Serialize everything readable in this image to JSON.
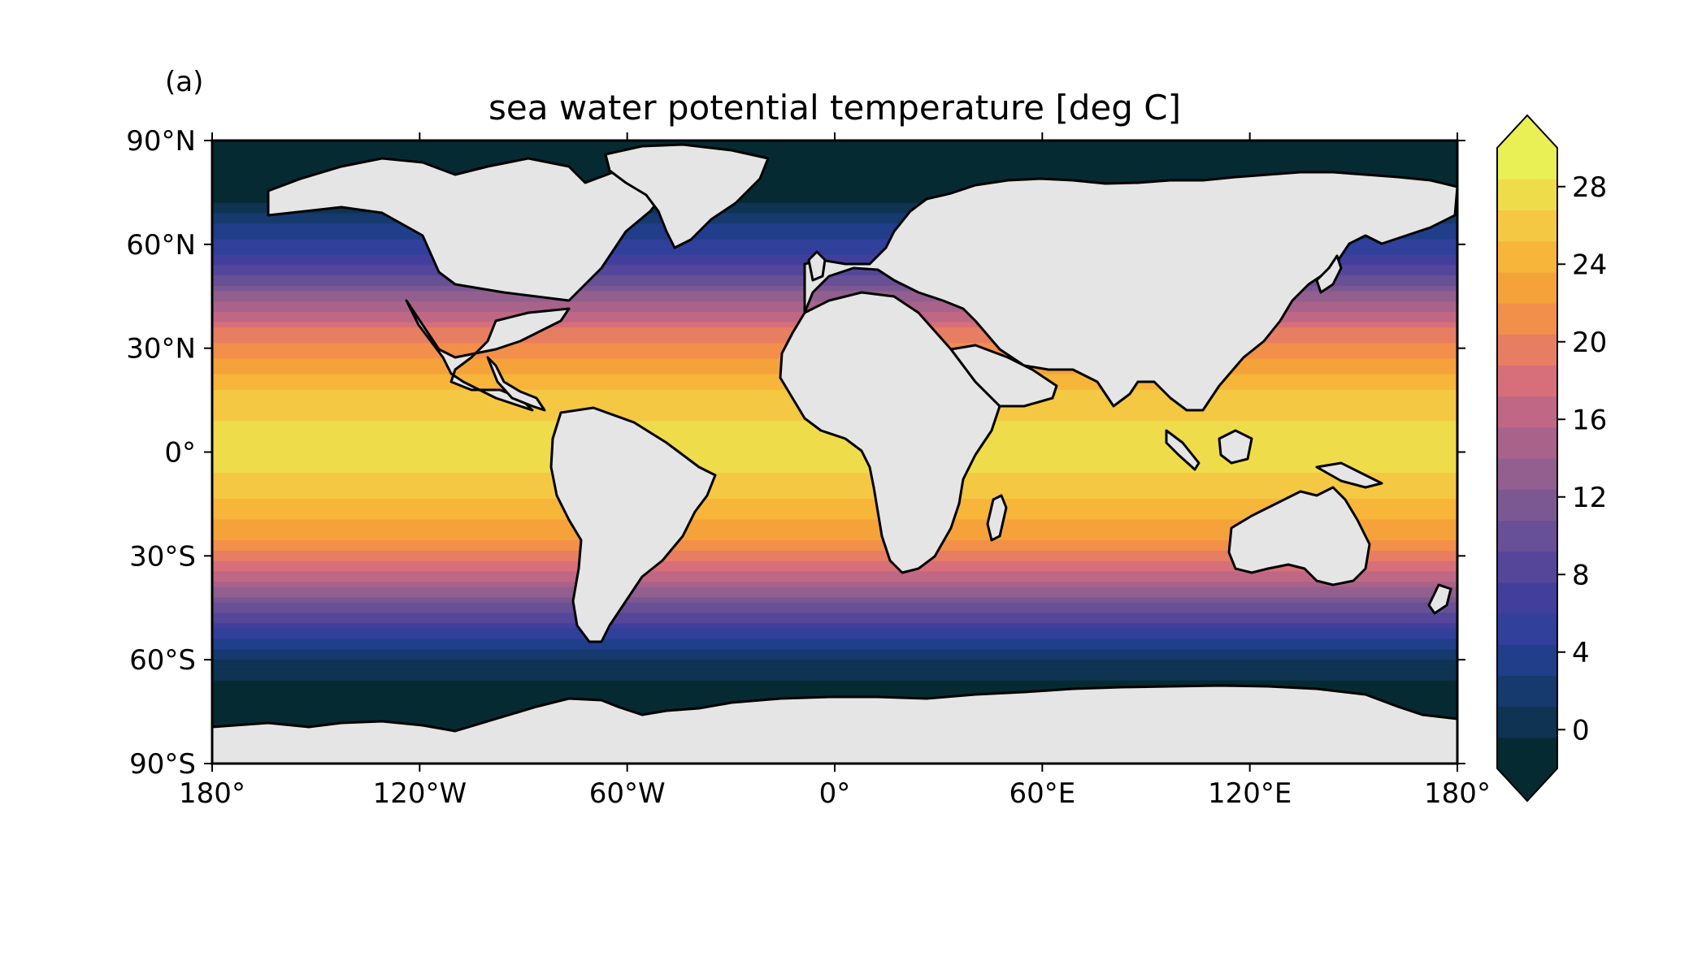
{
  "panel_label": "(a)",
  "title": "sea water potential temperature [deg C]",
  "chart_data": {
    "type": "heatmap",
    "title": "sea water potential temperature [deg C]",
    "xlim": [
      -180,
      180
    ],
    "ylim": [
      -90,
      90
    ],
    "x_ticks": [
      {
        "value": -180,
        "label": "180°"
      },
      {
        "value": -120,
        "label": "120°W"
      },
      {
        "value": -60,
        "label": "60°W"
      },
      {
        "value": 0,
        "label": "0°"
      },
      {
        "value": 60,
        "label": "60°E"
      },
      {
        "value": 120,
        "label": "120°E"
      },
      {
        "value": 180,
        "label": "180°"
      }
    ],
    "y_ticks": [
      {
        "value": 90,
        "label": "90°N"
      },
      {
        "value": 60,
        "label": "60°N"
      },
      {
        "value": 30,
        "label": "30°N"
      },
      {
        "value": 0,
        "label": "0°"
      },
      {
        "value": -30,
        "label": "30°S"
      },
      {
        "value": -60,
        "label": "60°S"
      },
      {
        "value": -90,
        "label": "90°S"
      }
    ],
    "zonal_profile": [
      {
        "lat": 90,
        "temp": -1.8
      },
      {
        "lat": 75,
        "temp": -1.5
      },
      {
        "lat": 65,
        "temp": 3
      },
      {
        "lat": 55,
        "temp": 7
      },
      {
        "lat": 45,
        "temp": 13
      },
      {
        "lat": 35,
        "temp": 19
      },
      {
        "lat": 25,
        "temp": 23
      },
      {
        "lat": 15,
        "temp": 26
      },
      {
        "lat": 5,
        "temp": 27.5
      },
      {
        "lat": -5,
        "temp": 27
      },
      {
        "lat": -15,
        "temp": 25
      },
      {
        "lat": -25,
        "temp": 22
      },
      {
        "lat": -35,
        "temp": 17
      },
      {
        "lat": -45,
        "temp": 10
      },
      {
        "lat": -55,
        "temp": 4
      },
      {
        "lat": -62,
        "temp": 0.5
      },
      {
        "lat": -70,
        "temp": -1.5
      },
      {
        "lat": -90,
        "temp": -1.8
      }
    ],
    "colorbar": {
      "min": -2,
      "max": 30,
      "extend": "both",
      "ticks": [
        0,
        4,
        8,
        12,
        16,
        20,
        24,
        28
      ],
      "colors": [
        "#062a32",
        "#0f3352",
        "#163a6e",
        "#213e8a",
        "#30409b",
        "#423f9c",
        "#55469a",
        "#685096",
        "#7c5892",
        "#925f8e",
        "#a9628a",
        "#c06785",
        "#d66f79",
        "#e77e62",
        "#f28f4a",
        "#f6a23a",
        "#f7b53a",
        "#f5c843",
        "#efdc4a",
        "#e8f055"
      ]
    },
    "land_color": "#e5e5e5"
  }
}
